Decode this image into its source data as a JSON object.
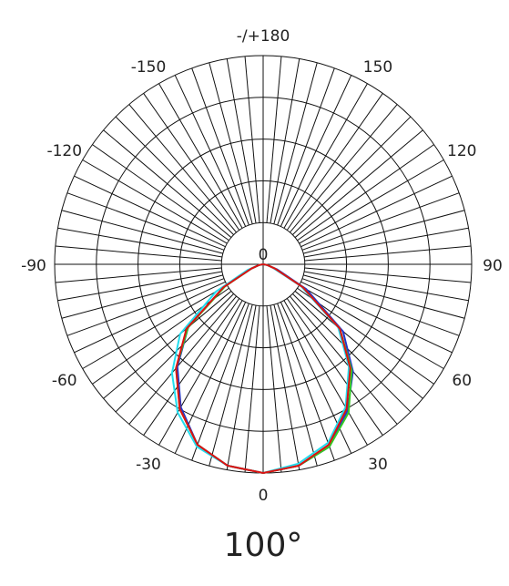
{
  "chart_data": {
    "type": "polar-line",
    "title": "100°",
    "x": [
      -90,
      -80,
      -70,
      -60,
      -50,
      -40,
      -30,
      -20,
      -10,
      0,
      10,
      20,
      30,
      40,
      50,
      60,
      70,
      80,
      90
    ],
    "series": [
      {
        "color": "#2233cc",
        "values": [
          0,
          2,
          6,
          22,
          47,
          64,
          79,
          92,
          98,
          100,
          98,
          93,
          81,
          67,
          50,
          24,
          7,
          2,
          0
        ]
      },
      {
        "color": "#33cc22",
        "values": [
          0,
          2,
          6,
          21,
          47,
          65,
          80,
          92,
          98,
          100,
          98,
          93,
          82,
          66,
          48,
          22,
          6,
          2,
          0
        ]
      },
      {
        "color": "#22ddee",
        "values": [
          0,
          2,
          8,
          26,
          52,
          68,
          82,
          93,
          98,
          100,
          97,
          91,
          79,
          64,
          47,
          21,
          5,
          2,
          0
        ]
      },
      {
        "color": "#dd1111",
        "values": [
          0,
          2,
          6,
          22,
          48,
          65,
          80,
          92,
          98,
          100,
          98,
          92,
          80,
          65,
          48,
          22,
          6,
          2,
          0
        ]
      }
    ],
    "rlim": [
      0,
      100
    ],
    "rticks": [
      0
    ],
    "rgrid": [
      20,
      40,
      60,
      80,
      100
    ],
    "xticks": [
      {
        "value": 180,
        "label": "-/+180"
      },
      -150,
      150,
      -120,
      120,
      -90,
      90,
      -60,
      60,
      -30,
      30,
      0
    ],
    "spoke_step": 5
  }
}
